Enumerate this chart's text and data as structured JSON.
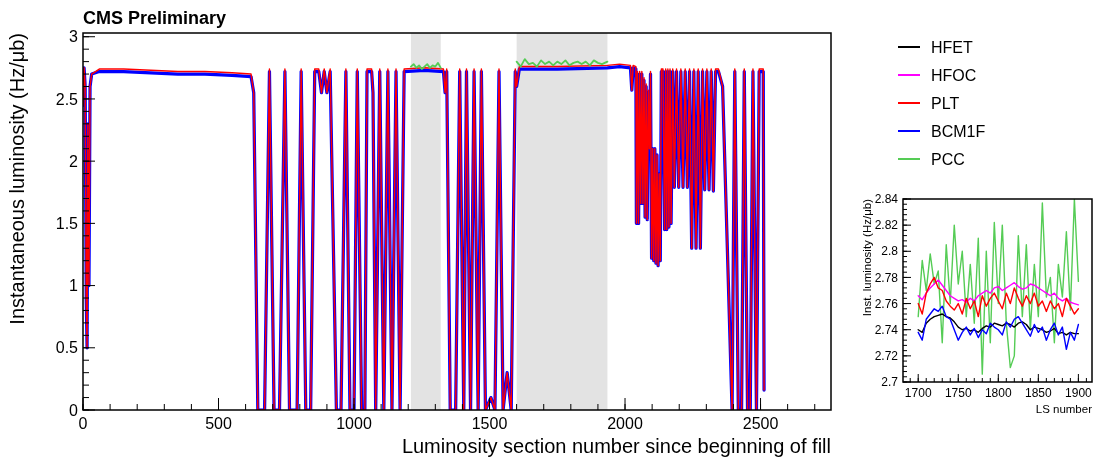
{
  "chart_data": [
    {
      "type": "line",
      "title": "CMS Preliminary",
      "xlabel": "Luminosity section number since beginning of fill",
      "ylabel": "Instantaneous luminosity (Hz/μb)",
      "xlim": [
        0,
        2760
      ],
      "xticks": [
        0,
        500,
        1000,
        1500,
        2000,
        2500
      ],
      "ylim": [
        0,
        3.03
      ],
      "yticks": [
        0,
        0.5,
        1,
        1.5,
        2,
        2.5,
        3
      ],
      "grid": false,
      "bands": [
        {
          "axis": "x",
          "from": 1210,
          "to": 1320,
          "color": "#e3e3e3"
        },
        {
          "axis": "x",
          "from": 1600,
          "to": 1935,
          "color": "#e3e3e3"
        }
      ],
      "x": [
        0,
        4,
        8,
        12,
        15,
        18,
        22,
        26,
        32,
        60,
        150,
        250,
        350,
        450,
        550,
        620,
        630,
        645,
        670,
        688,
        705,
        725,
        745,
        762,
        790,
        805,
        822,
        840,
        855,
        870,
        880,
        890,
        900,
        912,
        935,
        952,
        970,
        985,
        1000,
        1012,
        1028,
        1040,
        1048,
        1065,
        1070,
        1080,
        1095,
        1110,
        1125,
        1140,
        1155,
        1170,
        1185,
        1260,
        1330,
        1336,
        1342,
        1355,
        1375,
        1390,
        1405,
        1415,
        1430,
        1443,
        1458,
        1470,
        1485,
        1505,
        1520,
        1535,
        1550,
        1565,
        1580,
        1595,
        1600,
        1610,
        1750,
        1935,
        1980,
        2020,
        2025,
        2030,
        2040,
        2042,
        2046,
        2050,
        2054,
        2058,
        2062,
        2066,
        2070,
        2074,
        2078,
        2082,
        2086,
        2090,
        2094,
        2098,
        2102,
        2106,
        2110,
        2114,
        2118,
        2122,
        2126,
        2130,
        2134,
        2140,
        2146,
        2150,
        2154,
        2158,
        2162,
        2166,
        2170,
        2176,
        2182,
        2190,
        2198,
        2206,
        2214,
        2222,
        2230,
        2238,
        2246,
        2254,
        2262,
        2270,
        2278,
        2286,
        2294,
        2302,
        2310,
        2318,
        2326,
        2334,
        2345,
        2360,
        2395,
        2405,
        2418,
        2430,
        2440,
        2452,
        2462,
        2472,
        2485,
        2495,
        2510,
        2513
      ],
      "series": [
        {
          "color": "#0000ff",
          "values": [
            2.45,
            2.75,
            2.6,
            0.9,
            0.5,
            2.3,
            1.0,
            2.6,
            2.7,
            2.72,
            2.72,
            2.71,
            2.7,
            2.7,
            2.69,
            2.68,
            2.55,
            0,
            0,
            2.72,
            0,
            0,
            2.72,
            0,
            0,
            2.72,
            0,
            0,
            2.72,
            2.72,
            2.55,
            2.72,
            2.55,
            2.72,
            0,
            0,
            2.72,
            0,
            0,
            2.72,
            0,
            0,
            2.72,
            2.72,
            2.55,
            0,
            2.72,
            0,
            2.72,
            0,
            2.72,
            0,
            2.72,
            2.73,
            2.72,
            2.55,
            2.72,
            0,
            0,
            2.72,
            0,
            2.72,
            0,
            2.72,
            0,
            2.72,
            0,
            0.1,
            0,
            2.72,
            0,
            0.3,
            0,
            2.72,
            2.6,
            2.74,
            2.74,
            2.75,
            2.76,
            2.75,
            2.57,
            2.75,
            2.74,
            1.5,
            2.7,
            1.5,
            2.7,
            1.66,
            2.7,
            1.66,
            2.65,
            1.55,
            2.6,
            1.53,
            2.55,
            2.1,
            2.7,
            1.22,
            2.1,
            1.2,
            2.1,
            1.18,
            2.05,
            1.16,
            1.9,
            1.2,
            2.72,
            2.72,
            1.45,
            2.72,
            1.45,
            2.72,
            1.47,
            2.72,
            1.5,
            2.72,
            1.79,
            2.72,
            1.79,
            2.72,
            1.79,
            2.72,
            1.79,
            2.72,
            1.3,
            2.72,
            1.3,
            2.72,
            1.3,
            2.72,
            1.77,
            2.72,
            1.77,
            2.72,
            1.76,
            2.72,
            2.72,
            2.6,
            0,
            2.72,
            0,
            0,
            2.72,
            0,
            0,
            2.72,
            0,
            2.72,
            2.72,
            0.16
          ]
        },
        {
          "color": "#ff0000",
          "values": [
            2.45,
            2.75,
            2.6,
            0.9,
            0.5,
            2.3,
            1.0,
            2.6,
            2.7,
            2.74,
            2.74,
            2.73,
            2.72,
            2.72,
            2.71,
            2.7,
            2.55,
            0,
            0,
            2.74,
            0,
            0,
            2.74,
            0,
            0,
            2.74,
            0,
            0,
            2.74,
            2.74,
            2.55,
            2.74,
            2.55,
            2.74,
            0,
            0,
            2.74,
            0,
            0,
            2.74,
            0,
            0,
            2.74,
            2.74,
            2.55,
            0,
            2.74,
            0,
            2.74,
            0,
            2.74,
            0,
            2.74,
            2.75,
            2.74,
            2.55,
            2.74,
            0,
            0,
            2.74,
            0,
            2.74,
            0,
            2.74,
            0,
            2.74,
            0,
            0.1,
            0,
            2.74,
            0,
            0.3,
            0,
            2.74,
            2.6,
            2.76,
            2.76,
            2.77,
            2.78,
            2.77,
            2.57,
            2.77,
            2.76,
            1.5,
            2.72,
            1.5,
            2.72,
            1.66,
            2.72,
            1.66,
            2.67,
            1.55,
            2.62,
            1.53,
            2.57,
            2.1,
            2.72,
            1.22,
            2.1,
            1.2,
            2.1,
            1.18,
            2.05,
            1.16,
            1.9,
            1.2,
            2.74,
            2.74,
            1.45,
            2.74,
            1.45,
            2.74,
            1.47,
            2.74,
            1.5,
            2.74,
            1.79,
            2.74,
            1.79,
            2.74,
            1.79,
            2.74,
            1.79,
            2.74,
            1.3,
            2.74,
            1.3,
            2.74,
            1.3,
            2.74,
            1.77,
            2.74,
            1.77,
            2.74,
            1.76,
            2.74,
            2.74,
            2.6,
            0,
            2.74,
            0,
            0,
            2.74,
            0,
            0,
            2.74,
            0,
            2.74,
            2.74,
            0.16
          ]
        },
        {
          "color": "#55cc55",
          "x": [
            1210,
            1220,
            1230,
            1240,
            1250,
            1260,
            1270,
            1280,
            1290,
            1300,
            1310,
            1320,
            1460,
            1600,
            1615,
            1630,
            1645,
            1660,
            1675,
            1690,
            1705,
            1720,
            1735,
            1750,
            1765,
            1780,
            1795,
            1810,
            1825,
            1840,
            1855,
            1870,
            1885,
            1900,
            1915,
            1935
          ],
          "values": [
            2.76,
            2.78,
            2.75,
            2.77,
            2.74,
            2.76,
            2.78,
            2.75,
            2.77,
            2.76,
            2.79,
            2.75,
            null,
            2.8,
            2.76,
            2.82,
            2.78,
            2.79,
            2.76,
            2.81,
            2.78,
            2.8,
            2.77,
            2.8,
            2.78,
            2.81,
            2.77,
            2.79,
            2.8,
            2.78,
            2.8,
            2.77,
            2.81,
            2.79,
            2.78,
            2.8
          ]
        }
      ]
    },
    {
      "type": "line",
      "xlabel": "LS number",
      "ylabel": "Inst. luminosity (Hz/μb)",
      "xlim": [
        1681,
        1917
      ],
      "xticks": [
        1700,
        1750,
        1800,
        1850,
        1900
      ],
      "ylim": [
        2.7,
        2.84
      ],
      "yticks": [
        2.7,
        2.72,
        2.74,
        2.76,
        2.78,
        2.8,
        2.82,
        2.84
      ],
      "grid": false,
      "legend": "top",
      "x": [
        1700,
        1705,
        1710,
        1715,
        1720,
        1725,
        1730,
        1735,
        1740,
        1745,
        1750,
        1755,
        1760,
        1765,
        1770,
        1775,
        1780,
        1785,
        1790,
        1795,
        1800,
        1805,
        1810,
        1815,
        1820,
        1825,
        1830,
        1835,
        1840,
        1845,
        1850,
        1855,
        1860,
        1865,
        1870,
        1875,
        1880,
        1885,
        1890,
        1895,
        1900
      ],
      "series": [
        {
          "name": "PCC",
          "color": "#55cc55",
          "values": [
            2.75,
            2.793,
            2.77,
            2.798,
            2.775,
            2.785,
            2.73,
            2.805,
            2.76,
            2.82,
            2.775,
            2.8,
            2.75,
            2.79,
            2.745,
            2.81,
            2.706,
            2.8,
            2.73,
            2.822,
            2.76,
            2.82,
            2.745,
            2.711,
            2.72,
            2.812,
            2.75,
            2.805,
            2.74,
            2.79,
            2.75,
            2.837,
            2.765,
            2.78,
            2.73,
            2.79,
            2.765,
            2.815,
            2.755,
            2.84,
            2.777
          ]
        },
        {
          "name": "HFET",
          "color": "#000000",
          "values": [
            2.74,
            2.738,
            2.745,
            2.748,
            2.75,
            2.751,
            2.752,
            2.75,
            2.749,
            2.746,
            2.742,
            2.74,
            2.741,
            2.739,
            2.74,
            2.738,
            2.741,
            2.743,
            2.742,
            2.745,
            2.744,
            2.743,
            2.745,
            2.744,
            2.742,
            2.745,
            2.746,
            2.744,
            2.74,
            2.742,
            2.741,
            2.74,
            2.738,
            2.739,
            2.741,
            2.737,
            2.738,
            2.736,
            2.738,
            2.737,
            2.737
          ]
        },
        {
          "name": "HFOC",
          "color": "#ff00ff",
          "values": [
            2.766,
            2.763,
            2.768,
            2.772,
            2.775,
            2.778,
            2.774,
            2.77,
            2.766,
            2.764,
            2.762,
            2.763,
            2.761,
            2.764,
            2.762,
            2.766,
            2.768,
            2.77,
            2.768,
            2.772,
            2.773,
            2.77,
            2.772,
            2.774,
            2.776,
            2.773,
            2.771,
            2.772,
            2.775,
            2.774,
            2.772,
            2.77,
            2.768,
            2.766,
            2.768,
            2.764,
            2.762,
            2.764,
            2.761,
            2.76,
            2.759
          ]
        },
        {
          "name": "PLT",
          "color": "#ff0000",
          "values": [
            2.76,
            2.752,
            2.768,
            2.775,
            2.78,
            2.772,
            2.77,
            2.762,
            2.758,
            2.755,
            2.76,
            2.752,
            2.764,
            2.756,
            2.762,
            2.75,
            2.766,
            2.758,
            2.764,
            2.768,
            2.762,
            2.756,
            2.768,
            2.76,
            2.772,
            2.764,
            2.758,
            2.766,
            2.76,
            2.768,
            2.758,
            2.762,
            2.754,
            2.762,
            2.756,
            2.76,
            2.75,
            2.764,
            2.758,
            2.752,
            2.756
          ]
        },
        {
          "name": "BCM1F",
          "color": "#0000ff",
          "values": [
            2.738,
            2.732,
            2.748,
            2.752,
            2.756,
            2.754,
            2.758,
            2.75,
            2.748,
            2.74,
            2.732,
            2.738,
            2.742,
            2.736,
            2.741,
            2.734,
            2.74,
            2.737,
            2.745,
            2.742,
            2.74,
            2.736,
            2.746,
            2.742,
            2.748,
            2.75,
            2.745,
            2.74,
            2.735,
            2.744,
            2.738,
            2.742,
            2.732,
            2.74,
            2.745,
            2.736,
            2.742,
            2.725,
            2.738,
            2.732,
            2.744
          ]
        }
      ]
    }
  ]
}
